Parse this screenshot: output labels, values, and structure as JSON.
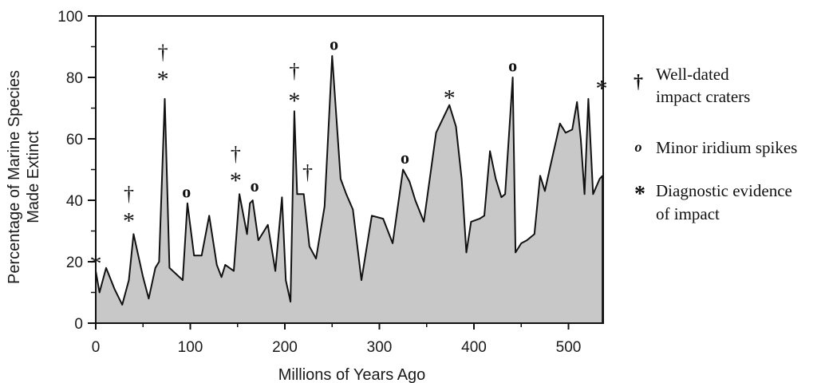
{
  "chart_data": {
    "type": "area",
    "xlabel": "Millions of Years Ago",
    "ylabel_line1": "Percentage of Marine Species",
    "ylabel_line2": "Made Extinct",
    "xlim": [
      0,
      540
    ],
    "ylim": [
      0,
      100
    ],
    "x_ticks": [
      0,
      100,
      200,
      300,
      400,
      500
    ],
    "y_ticks": [
      0,
      20,
      40,
      60,
      80,
      100
    ],
    "grid": false,
    "fill_color": "#c8c8c8",
    "line_color": "#111111",
    "series": [
      {
        "x": [
          0,
          4,
          11,
          20,
          28,
          35,
          40,
          50,
          56,
          63,
          67,
          73,
          78,
          85,
          92,
          97,
          104,
          112,
          120,
          128,
          133,
          137,
          146,
          152,
          155,
          160,
          163,
          166,
          172,
          182,
          190,
          197,
          201,
          206,
          210,
          213,
          220,
          226,
          233,
          242,
          250,
          259,
          265,
          272,
          281,
          292,
          304,
          314,
          325,
          332,
          338,
          347,
          360,
          374,
          381,
          387,
          392,
          397,
          406,
          411,
          417,
          423,
          429,
          433,
          441,
          444,
          450,
          456,
          464,
          470,
          475,
          480,
          491,
          497,
          504,
          509,
          513,
          517,
          521,
          526,
          533,
          536
        ],
        "y": [
          17,
          10,
          18,
          11,
          6,
          14,
          29,
          15,
          8,
          18,
          20,
          73,
          18,
          16,
          14,
          39,
          22,
          22,
          35,
          19,
          15,
          19,
          17,
          42,
          37,
          29,
          39,
          40,
          27,
          32,
          17,
          41,
          14,
          7,
          69,
          42,
          42,
          25,
          21,
          38,
          87,
          47,
          42,
          37,
          14,
          35,
          34,
          26,
          50,
          46,
          40,
          33,
          62,
          71,
          64,
          47,
          23,
          33,
          34,
          35,
          56,
          47,
          41,
          42,
          80,
          23,
          26,
          27,
          29,
          48,
          43,
          50,
          65,
          62,
          63,
          72,
          60,
          42,
          73,
          42,
          47,
          48
        ]
      }
    ],
    "end_drop_x": 536,
    "markers": [
      {
        "symbol": "*",
        "x": 0,
        "y": 21
      },
      {
        "symbol": "*",
        "x": 35,
        "y": 35
      },
      {
        "symbol": "†",
        "x": 35,
        "y": 42
      },
      {
        "symbol": "*",
        "x": 71,
        "y": 81
      },
      {
        "symbol": "†",
        "x": 71,
        "y": 88
      },
      {
        "symbol": "o",
        "x": 96,
        "y": 43
      },
      {
        "symbol": "*",
        "x": 148,
        "y": 48
      },
      {
        "symbol": "†",
        "x": 148,
        "y": 55
      },
      {
        "symbol": "o",
        "x": 168,
        "y": 45
      },
      {
        "symbol": "*",
        "x": 210,
        "y": 74
      },
      {
        "symbol": "†",
        "x": 210,
        "y": 82
      },
      {
        "symbol": "†",
        "x": 224,
        "y": 49
      },
      {
        "symbol": "o",
        "x": 252,
        "y": 91
      },
      {
        "symbol": "o",
        "x": 327,
        "y": 54
      },
      {
        "symbol": "*",
        "x": 374,
        "y": 75
      },
      {
        "symbol": "o",
        "x": 441,
        "y": 84
      },
      {
        "symbol": "*",
        "x": 535,
        "y": 78
      }
    ],
    "legend": [
      {
        "symbol": "†",
        "lines": [
          "Well-dated",
          "impact craters"
        ]
      },
      {
        "symbol": "o",
        "lines": [
          "Minor iridium spikes"
        ]
      },
      {
        "symbol": "*",
        "lines": [
          "Diagnostic evidence",
          "of impact"
        ]
      }
    ],
    "legend_position": "right"
  }
}
